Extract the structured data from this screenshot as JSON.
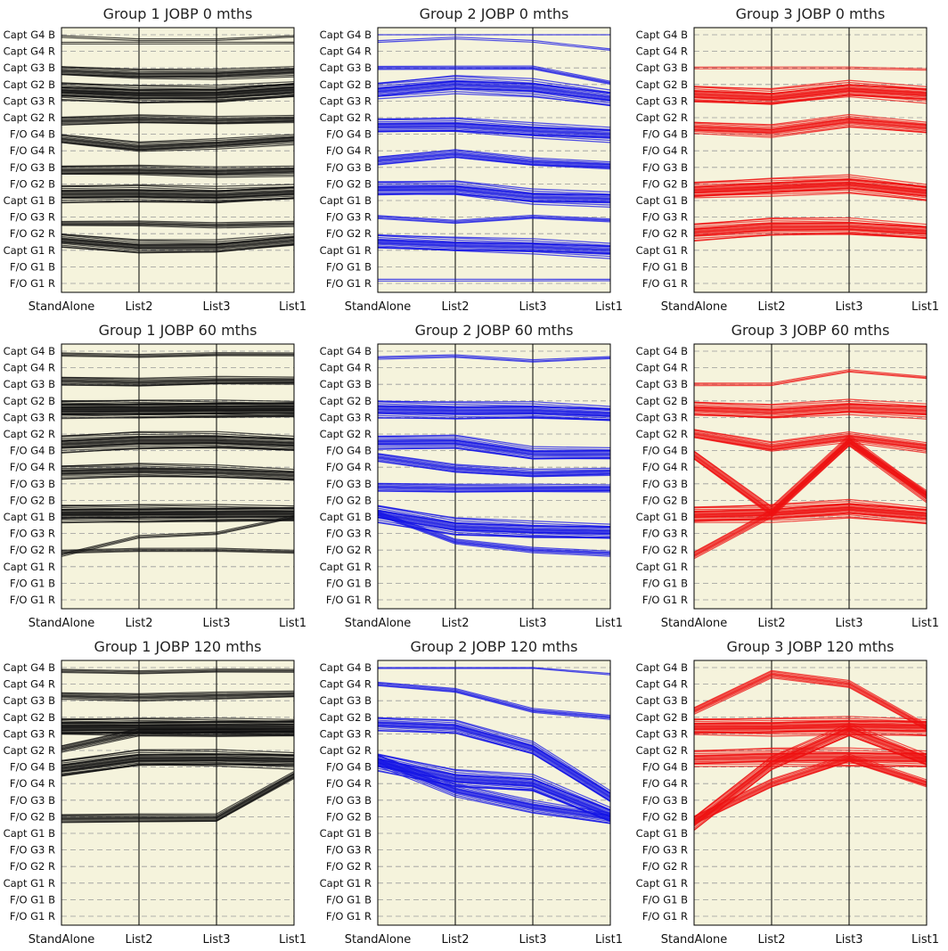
{
  "figure": {
    "y_categories": [
      "Capt G4 B",
      "Capt G4 R",
      "Capt G3 B",
      "Capt G2 B",
      "Capt G3 R",
      "Capt G2 R",
      "F/O  G4 B",
      "F/O  G4 R",
      "F/O  G3 B",
      "F/O  G2 B",
      "Capt G1 B",
      "F/O  G3 R",
      "F/O  G2 R",
      "Capt G1 R",
      "F/O  G1 B",
      "F/O  G1 R"
    ],
    "x_categories": [
      "StandAlone",
      "List2",
      "List3",
      "List1"
    ],
    "panel_bg": "#f5f3dc",
    "grid": "horizontal dashed",
    "colors": {
      "Group 1": "#111111",
      "Group 2": "#1414e6",
      "Group 3": "#ee1111"
    }
  },
  "chart_data": [
    {
      "type": "line",
      "title": "Group 1 JOBP 0 mths",
      "color": "#111111",
      "categories": [
        "StandAlone",
        "List2",
        "List3",
        "List1"
      ],
      "series": [
        {
          "values": [
            0.1,
            0.3,
            0.3,
            0.1
          ],
          "count": 2
        },
        {
          "values": [
            0.5,
            0.5,
            0.5,
            0.5
          ],
          "count": 2
        },
        {
          "values": [
            2.2,
            2.4,
            2.4,
            2.2
          ],
          "count": 12
        },
        {
          "values": [
            3.4,
            3.6,
            3.6,
            3.3
          ],
          "count": 28
        },
        {
          "values": [
            5.2,
            5.1,
            5.2,
            5.1
          ],
          "count": 10
        },
        {
          "values": [
            6.3,
            6.8,
            6.6,
            6.3
          ],
          "count": 12
        },
        {
          "values": [
            8.2,
            8.2,
            8.3,
            8.2
          ],
          "count": 12
        },
        {
          "values": [
            9.6,
            9.6,
            9.7,
            9.5
          ],
          "count": 22
        },
        {
          "values": [
            11.4,
            11.4,
            11.5,
            11.4
          ],
          "count": 6
        },
        {
          "values": [
            12.4,
            12.8,
            12.8,
            12.4
          ],
          "count": 16
        }
      ]
    },
    {
      "type": "line",
      "title": "Group 2 JOBP 0 mths",
      "color": "#1414e6",
      "categories": [
        "StandAlone",
        "List2",
        "List3",
        "List1"
      ],
      "series": [
        {
          "values": [
            0.0,
            0.0,
            0.0,
            0.0
          ],
          "count": 1
        },
        {
          "values": [
            0.4,
            0.2,
            0.4,
            0.9
          ],
          "count": 2
        },
        {
          "values": [
            2.0,
            2.0,
            2.0,
            2.9
          ],
          "count": 4
        },
        {
          "values": [
            3.4,
            3.0,
            3.2,
            3.8
          ],
          "count": 20
        },
        {
          "values": [
            5.5,
            5.5,
            5.8,
            6.0
          ],
          "count": 18
        },
        {
          "values": [
            7.6,
            7.2,
            7.7,
            7.9
          ],
          "count": 10
        },
        {
          "values": [
            9.3,
            9.3,
            9.8,
            9.9
          ],
          "count": 18
        },
        {
          "values": [
            11.0,
            11.3,
            11.0,
            11.2
          ],
          "count": 4
        },
        {
          "values": [
            12.5,
            12.7,
            12.8,
            13.0
          ],
          "count": 18
        },
        {
          "values": [
            14.8,
            14.8,
            14.8,
            14.8
          ],
          "count": 2
        }
      ]
    },
    {
      "type": "line",
      "title": "Group 3 JOBP 0 mths",
      "color": "#ee1111",
      "categories": [
        "StandAlone",
        "List2",
        "List3",
        "List1"
      ],
      "series": [
        {
          "values": [
            2.0,
            2.0,
            2.0,
            2.1
          ],
          "count": 2
        },
        {
          "values": [
            3.6,
            3.8,
            3.3,
            3.6
          ],
          "count": 24
        },
        {
          "values": [
            5.6,
            5.8,
            5.2,
            5.6
          ],
          "count": 14
        },
        {
          "values": [
            9.4,
            9.2,
            9.0,
            9.5
          ],
          "count": 26
        },
        {
          "values": [
            11.9,
            11.6,
            11.6,
            11.9
          ],
          "count": 22
        }
      ]
    },
    {
      "type": "line",
      "title": "Group 1 JOBP 60 mths",
      "color": "#111111",
      "categories": [
        "StandAlone",
        "List2",
        "List3",
        "List1"
      ],
      "series": [
        {
          "values": [
            0.2,
            0.3,
            0.2,
            0.2
          ],
          "count": 4
        },
        {
          "values": [
            1.8,
            1.9,
            1.8,
            1.8
          ],
          "count": 10
        },
        {
          "values": [
            3.5,
            3.5,
            3.5,
            3.5
          ],
          "count": 34
        },
        {
          "values": [
            5.6,
            5.4,
            5.4,
            5.6
          ],
          "count": 22
        },
        {
          "values": [
            7.3,
            7.2,
            7.3,
            7.5
          ],
          "count": 16
        },
        {
          "values": [
            9.8,
            9.8,
            9.8,
            9.8
          ],
          "count": 28
        },
        {
          "values": [
            12.3,
            11.2,
            11.0,
            10.0
          ],
          "count": 3
        },
        {
          "values": [
            12.1,
            12.0,
            12.0,
            12.1
          ],
          "count": 4
        }
      ]
    },
    {
      "type": "line",
      "title": "Group 2 JOBP 60 mths",
      "color": "#1414e6",
      "categories": [
        "StandAlone",
        "List2",
        "List3",
        "List1"
      ],
      "series": [
        {
          "values": [
            0.4,
            0.3,
            0.6,
            0.4
          ],
          "count": 3
        },
        {
          "values": [
            3.5,
            3.6,
            3.6,
            3.8
          ],
          "count": 22
        },
        {
          "values": [
            5.5,
            5.5,
            6.2,
            6.2
          ],
          "count": 16
        },
        {
          "values": [
            6.4,
            7.1,
            7.4,
            7.3
          ],
          "count": 10
        },
        {
          "values": [
            8.2,
            8.3,
            8.3,
            8.3
          ],
          "count": 10
        },
        {
          "values": [
            9.8,
            10.6,
            10.8,
            10.9
          ],
          "count": 22
        },
        {
          "values": [
            9.8,
            11.5,
            12.0,
            12.2
          ],
          "count": 6
        }
      ]
    },
    {
      "type": "line",
      "title": "Group 3 JOBP 60 mths",
      "color": "#ee1111",
      "categories": [
        "StandAlone",
        "List2",
        "List3",
        "List1"
      ],
      "series": [
        {
          "values": [
            2.0,
            2.0,
            1.2,
            1.6
          ],
          "count": 3
        },
        {
          "values": [
            3.5,
            3.7,
            3.4,
            3.6
          ],
          "count": 18
        },
        {
          "values": [
            5.0,
            5.8,
            5.2,
            5.8
          ],
          "count": 12
        },
        {
          "values": [
            6.3,
            9.7,
            5.4,
            8.8
          ],
          "count": 12
        },
        {
          "values": [
            9.9,
            9.8,
            9.5,
            9.9
          ],
          "count": 26
        },
        {
          "values": [
            12.3,
            9.8,
            5.5,
            8.6
          ],
          "count": 8
        }
      ]
    },
    {
      "type": "line",
      "title": "Group 1 JOBP 120 mths",
      "color": "#111111",
      "categories": [
        "StandAlone",
        "List2",
        "List3",
        "List1"
      ],
      "series": [
        {
          "values": [
            0.2,
            0.3,
            0.2,
            0.2
          ],
          "count": 4
        },
        {
          "values": [
            1.7,
            1.8,
            1.7,
            1.6
          ],
          "count": 8
        },
        {
          "values": [
            3.6,
            3.6,
            3.6,
            3.6
          ],
          "count": 32
        },
        {
          "values": [
            6.1,
            5.5,
            5.5,
            5.6
          ],
          "count": 24
        },
        {
          "values": [
            9.1,
            9.1,
            9.1,
            6.5
          ],
          "count": 10
        },
        {
          "values": [
            4.9,
            3.9,
            3.9,
            3.9
          ],
          "count": 8
        }
      ]
    },
    {
      "type": "line",
      "title": "Group 2 JOBP 120 mths",
      "color": "#1414e6",
      "categories": [
        "StandAlone",
        "List2",
        "List3",
        "List1"
      ],
      "series": [
        {
          "values": [
            0.0,
            0.0,
            0.0,
            0.4
          ],
          "count": 2
        },
        {
          "values": [
            1.0,
            1.4,
            2.6,
            3.0
          ],
          "count": 5
        },
        {
          "values": [
            3.4,
            3.6,
            4.9,
            7.8
          ],
          "count": 16
        },
        {
          "values": [
            5.7,
            6.7,
            7.0,
            8.9
          ],
          "count": 22
        },
        {
          "values": [
            5.6,
            7.4,
            8.4,
            9.1
          ],
          "count": 14
        }
      ]
    },
    {
      "type": "line",
      "title": "Group 3 JOBP 120 mths",
      "color": "#ee1111",
      "categories": [
        "StandAlone",
        "List2",
        "List3",
        "List1"
      ],
      "series": [
        {
          "values": [
            3.6,
            3.6,
            3.5,
            3.6
          ],
          "count": 26
        },
        {
          "values": [
            5.5,
            5.4,
            5.4,
            5.5
          ],
          "count": 20
        },
        {
          "values": [
            9.4,
            5.8,
            3.8,
            5.6
          ],
          "count": 16
        },
        {
          "values": [
            9.2,
            7.0,
            5.5,
            7.0
          ],
          "count": 10
        },
        {
          "values": [
            2.6,
            0.4,
            1.0,
            3.6
          ],
          "count": 8
        }
      ]
    }
  ]
}
